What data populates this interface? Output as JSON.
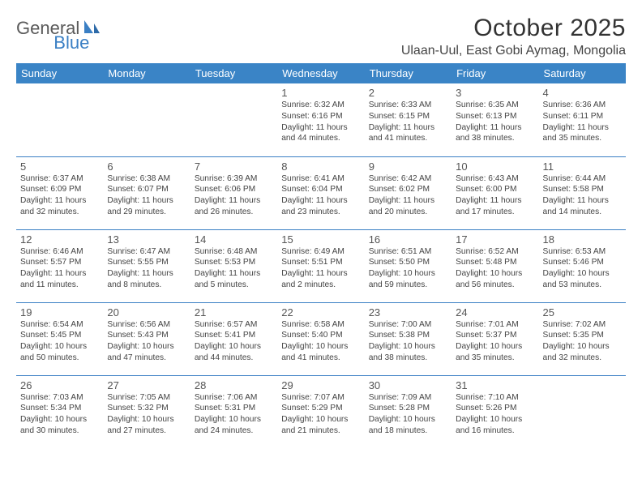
{
  "brand": {
    "part1": "General",
    "part2": "Blue"
  },
  "title": "October 2025",
  "location": "Ulaan-Uul, East Gobi Aymag, Mongolia",
  "colors": {
    "header_bg": "#3a84c6",
    "header_text": "#ffffff",
    "border": "#3a7fc4",
    "page_bg": "#ffffff",
    "text": "#333333",
    "brand_gray": "#5a5a5a",
    "brand_blue": "#3a7fc4"
  },
  "weekdays": [
    "Sunday",
    "Monday",
    "Tuesday",
    "Wednesday",
    "Thursday",
    "Friday",
    "Saturday"
  ],
  "weeks": [
    [
      null,
      null,
      null,
      {
        "n": "1",
        "sr": "6:32 AM",
        "ss": "6:16 PM",
        "dl": "11 hours and 44 minutes."
      },
      {
        "n": "2",
        "sr": "6:33 AM",
        "ss": "6:15 PM",
        "dl": "11 hours and 41 minutes."
      },
      {
        "n": "3",
        "sr": "6:35 AM",
        "ss": "6:13 PM",
        "dl": "11 hours and 38 minutes."
      },
      {
        "n": "4",
        "sr": "6:36 AM",
        "ss": "6:11 PM",
        "dl": "11 hours and 35 minutes."
      }
    ],
    [
      {
        "n": "5",
        "sr": "6:37 AM",
        "ss": "6:09 PM",
        "dl": "11 hours and 32 minutes."
      },
      {
        "n": "6",
        "sr": "6:38 AM",
        "ss": "6:07 PM",
        "dl": "11 hours and 29 minutes."
      },
      {
        "n": "7",
        "sr": "6:39 AM",
        "ss": "6:06 PM",
        "dl": "11 hours and 26 minutes."
      },
      {
        "n": "8",
        "sr": "6:41 AM",
        "ss": "6:04 PM",
        "dl": "11 hours and 23 minutes."
      },
      {
        "n": "9",
        "sr": "6:42 AM",
        "ss": "6:02 PM",
        "dl": "11 hours and 20 minutes."
      },
      {
        "n": "10",
        "sr": "6:43 AM",
        "ss": "6:00 PM",
        "dl": "11 hours and 17 minutes."
      },
      {
        "n": "11",
        "sr": "6:44 AM",
        "ss": "5:58 PM",
        "dl": "11 hours and 14 minutes."
      }
    ],
    [
      {
        "n": "12",
        "sr": "6:46 AM",
        "ss": "5:57 PM",
        "dl": "11 hours and 11 minutes."
      },
      {
        "n": "13",
        "sr": "6:47 AM",
        "ss": "5:55 PM",
        "dl": "11 hours and 8 minutes."
      },
      {
        "n": "14",
        "sr": "6:48 AM",
        "ss": "5:53 PM",
        "dl": "11 hours and 5 minutes."
      },
      {
        "n": "15",
        "sr": "6:49 AM",
        "ss": "5:51 PM",
        "dl": "11 hours and 2 minutes."
      },
      {
        "n": "16",
        "sr": "6:51 AM",
        "ss": "5:50 PM",
        "dl": "10 hours and 59 minutes."
      },
      {
        "n": "17",
        "sr": "6:52 AM",
        "ss": "5:48 PM",
        "dl": "10 hours and 56 minutes."
      },
      {
        "n": "18",
        "sr": "6:53 AM",
        "ss": "5:46 PM",
        "dl": "10 hours and 53 minutes."
      }
    ],
    [
      {
        "n": "19",
        "sr": "6:54 AM",
        "ss": "5:45 PM",
        "dl": "10 hours and 50 minutes."
      },
      {
        "n": "20",
        "sr": "6:56 AM",
        "ss": "5:43 PM",
        "dl": "10 hours and 47 minutes."
      },
      {
        "n": "21",
        "sr": "6:57 AM",
        "ss": "5:41 PM",
        "dl": "10 hours and 44 minutes."
      },
      {
        "n": "22",
        "sr": "6:58 AM",
        "ss": "5:40 PM",
        "dl": "10 hours and 41 minutes."
      },
      {
        "n": "23",
        "sr": "7:00 AM",
        "ss": "5:38 PM",
        "dl": "10 hours and 38 minutes."
      },
      {
        "n": "24",
        "sr": "7:01 AM",
        "ss": "5:37 PM",
        "dl": "10 hours and 35 minutes."
      },
      {
        "n": "25",
        "sr": "7:02 AM",
        "ss": "5:35 PM",
        "dl": "10 hours and 32 minutes."
      }
    ],
    [
      {
        "n": "26",
        "sr": "7:03 AM",
        "ss": "5:34 PM",
        "dl": "10 hours and 30 minutes."
      },
      {
        "n": "27",
        "sr": "7:05 AM",
        "ss": "5:32 PM",
        "dl": "10 hours and 27 minutes."
      },
      {
        "n": "28",
        "sr": "7:06 AM",
        "ss": "5:31 PM",
        "dl": "10 hours and 24 minutes."
      },
      {
        "n": "29",
        "sr": "7:07 AM",
        "ss": "5:29 PM",
        "dl": "10 hours and 21 minutes."
      },
      {
        "n": "30",
        "sr": "7:09 AM",
        "ss": "5:28 PM",
        "dl": "10 hours and 18 minutes."
      },
      {
        "n": "31",
        "sr": "7:10 AM",
        "ss": "5:26 PM",
        "dl": "10 hours and 16 minutes."
      },
      null
    ]
  ],
  "labels": {
    "sunrise": "Sunrise:",
    "sunset": "Sunset:",
    "daylight": "Daylight:"
  }
}
